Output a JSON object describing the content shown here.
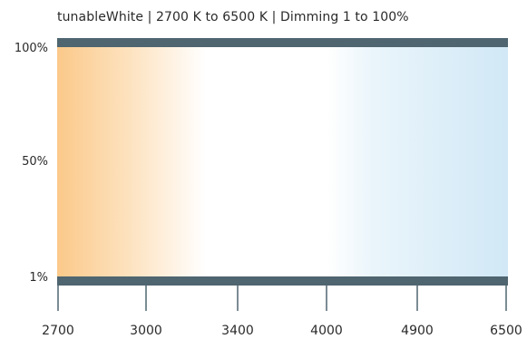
{
  "chart_data": {
    "type": "area",
    "title": "tunableWhite | 2700 K to 6500 K | Dimming 1 to 100%",
    "y_ticks": [
      "100%",
      "50%",
      "1%"
    ],
    "x_ticks": [
      "2700",
      "3000",
      "3400",
      "4000",
      "4900",
      "6500"
    ],
    "x_unit": "K",
    "x_range": [
      2700,
      6500
    ],
    "y_range": [
      1,
      100
    ],
    "colors": {
      "warm": "#fbc98a",
      "neutral": "#ffffff",
      "cool": "#d1e8f6",
      "bar": "#4f6570",
      "tick": "#4f6570"
    }
  }
}
